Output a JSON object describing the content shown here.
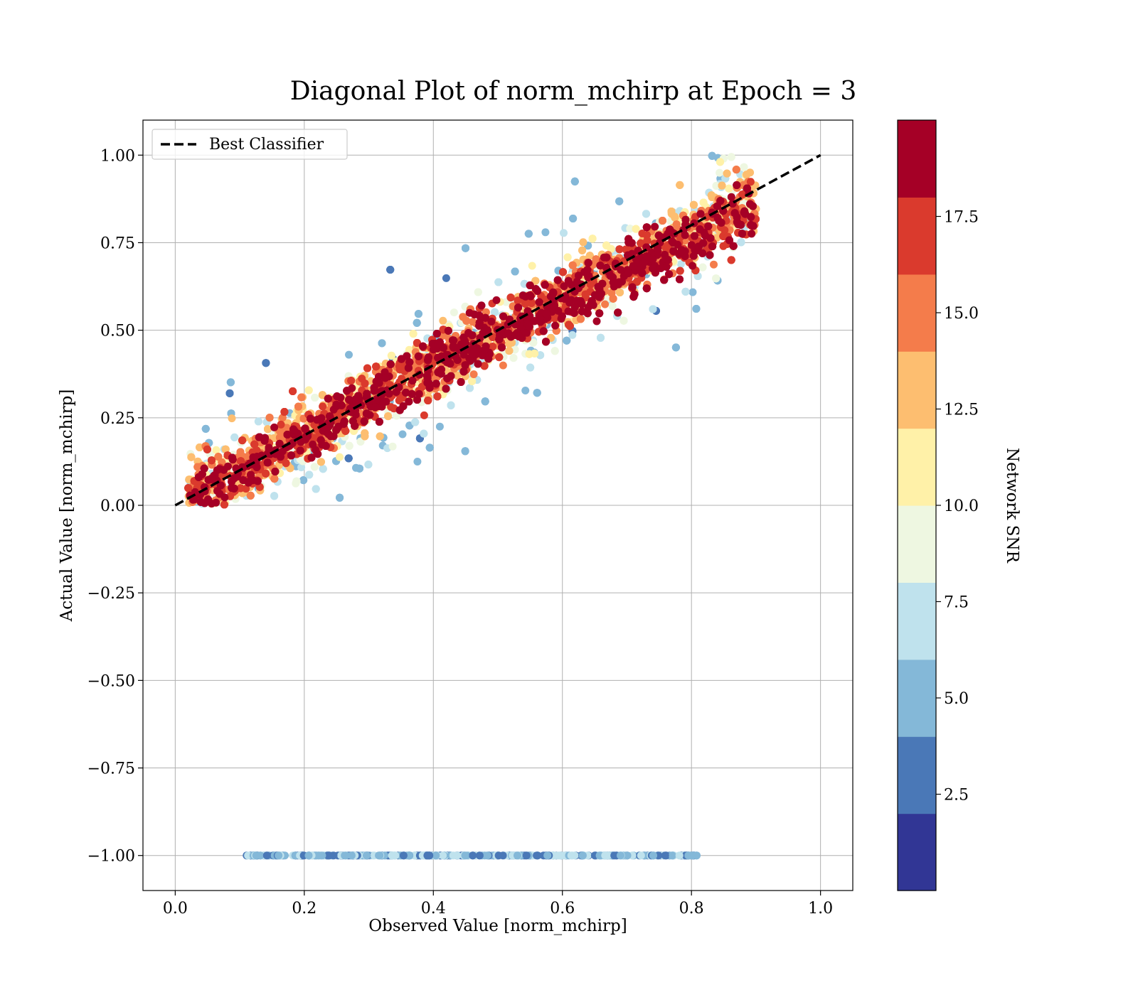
{
  "chart_data": {
    "type": "scatter",
    "title": "Diagonal Plot of norm_mchirp at Epoch = 3",
    "xlabel": "Observed Value [norm_mchirp]",
    "ylabel": "Actual Value [norm_mchirp]",
    "xlim": [
      -0.05,
      1.05
    ],
    "ylim": [
      -1.1,
      1.1
    ],
    "x_ticks": [
      "0.0",
      "0.2",
      "0.4",
      "0.6",
      "0.8",
      "1.0"
    ],
    "x_tick_values": [
      0,
      0.2,
      0.4,
      0.6,
      0.8,
      1.0
    ],
    "y_ticks": [
      "1.00",
      "0.75",
      "0.50",
      "0.25",
      "0.00",
      "−0.25",
      "−0.50",
      "−0.75",
      "−1.00"
    ],
    "y_tick_values": [
      1.0,
      0.75,
      0.5,
      0.25,
      0.0,
      -0.25,
      -0.5,
      -0.75,
      -1.0
    ],
    "grid": true,
    "legend": {
      "placement": "upper-left",
      "entries": [
        {
          "label": "Best Classifier",
          "style": "dashed",
          "color": "#000000"
        }
      ]
    },
    "reference_line": {
      "name": "Best Classifier",
      "x": [
        0,
        1
      ],
      "y": [
        0,
        1
      ]
    },
    "scatter_summary": {
      "main_cloud": {
        "x_range": [
          0.02,
          0.92
        ],
        "y_range": [
          0.0,
          1.0
        ],
        "color_by": "Network SNR"
      },
      "bottom_row": {
        "y": -1.0,
        "x_range": [
          0.11,
          0.81
        ],
        "snr_range": [
          2.5,
          7.5
        ]
      }
    },
    "colorbar": {
      "label": "Network SNR",
      "range": [
        0,
        20
      ],
      "ticks": [
        "2.5",
        "5.0",
        "7.5",
        "10.0",
        "12.5",
        "15.0",
        "17.5"
      ],
      "tick_values": [
        2.5,
        5.0,
        7.5,
        10.0,
        12.5,
        15.0,
        17.5
      ],
      "colors": [
        "#313695",
        "#4a78b7",
        "#84b8d8",
        "#bfe2ed",
        "#eef7e1",
        "#fff1a8",
        "#fdbe70",
        "#f47c4b",
        "#da3a2d",
        "#a50026"
      ]
    }
  }
}
